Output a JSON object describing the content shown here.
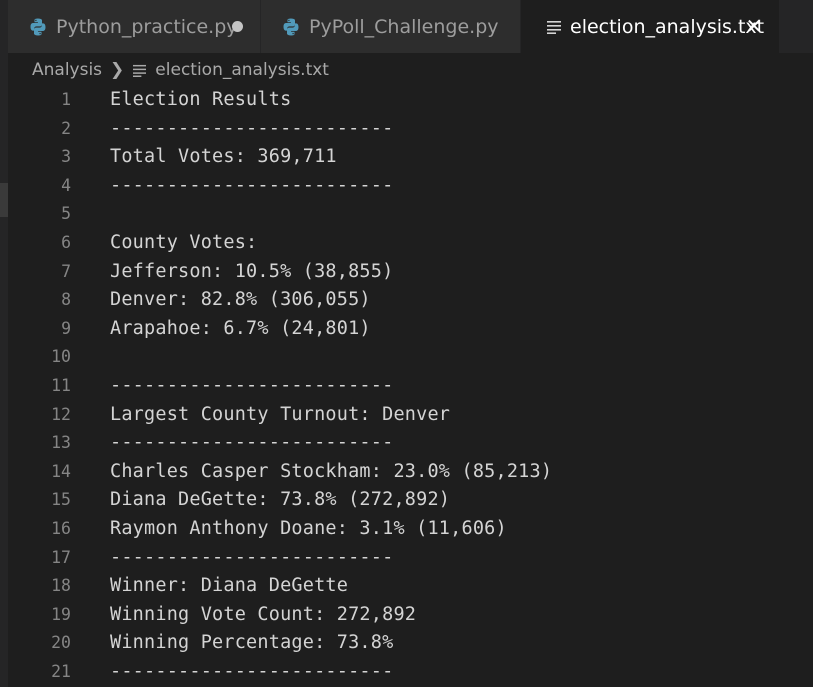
{
  "tabs": [
    {
      "label": "Python_practice.py",
      "icon": "python-file-icon",
      "modified": true,
      "active": false
    },
    {
      "label": "PyPoll_Challenge.py",
      "icon": "python-file-icon",
      "modified": false,
      "active": false
    },
    {
      "label": "election_analysis.txt",
      "icon": "text-file-icon",
      "modified": false,
      "active": true
    }
  ],
  "breadcrumb": {
    "folder": "Analysis",
    "file": "election_analysis.txt"
  },
  "editor": {
    "lines": [
      {
        "number": "1",
        "text": "Election Results"
      },
      {
        "number": "2",
        "text": "-------------------------"
      },
      {
        "number": "3",
        "text": "Total Votes: 369,711"
      },
      {
        "number": "4",
        "text": "-------------------------"
      },
      {
        "number": "5",
        "text": ""
      },
      {
        "number": "6",
        "text": "County Votes:"
      },
      {
        "number": "7",
        "text": "Jefferson: 10.5% (38,855)"
      },
      {
        "number": "8",
        "text": "Denver: 82.8% (306,055)"
      },
      {
        "number": "9",
        "text": "Arapahoe: 6.7% (24,801)"
      },
      {
        "number": "10",
        "text": ""
      },
      {
        "number": "11",
        "text": "-------------------------"
      },
      {
        "number": "12",
        "text": "Largest County Turnout: Denver"
      },
      {
        "number": "13",
        "text": "-------------------------"
      },
      {
        "number": "14",
        "text": "Charles Casper Stockham: 23.0% (85,213)"
      },
      {
        "number": "15",
        "text": "Diana DeGette: 73.8% (272,892)"
      },
      {
        "number": "16",
        "text": "Raymon Anthony Doane: 3.1% (11,606)"
      },
      {
        "number": "17",
        "text": "-------------------------"
      },
      {
        "number": "18",
        "text": "Winner: Diana DeGette"
      },
      {
        "number": "19",
        "text": "Winning Vote Count: 272,892"
      },
      {
        "number": "20",
        "text": "Winning Percentage: 73.8%"
      },
      {
        "number": "21",
        "text": "-------------------------"
      }
    ]
  },
  "colors": {
    "editor_background": "#1e1e1e",
    "tab_inactive_background": "#2d2d2d",
    "tab_active_text": "#ffffff",
    "python_icon": "#519aba",
    "line_number": "#858585",
    "code_text": "#d4d4d4"
  }
}
